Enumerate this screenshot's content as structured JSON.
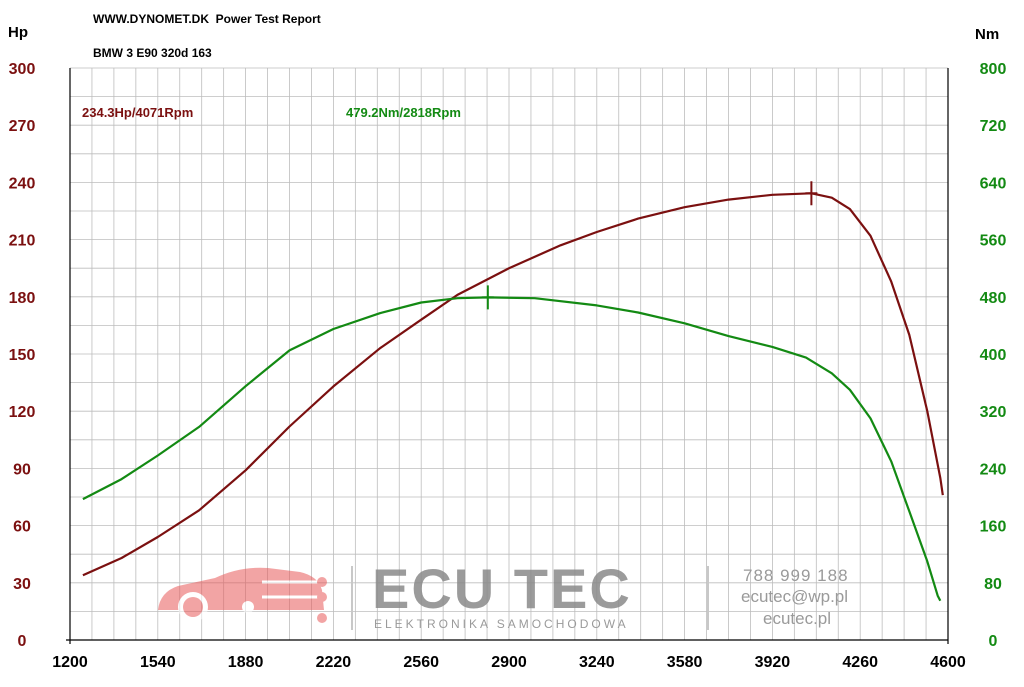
{
  "header": {
    "title": "WWW.DYNOMET.DK  Power Test Report",
    "vehicle": "BMW 3 E90 320d 163"
  },
  "colors": {
    "power": "#7b1010",
    "torque": "#138a13",
    "grid": "#bdbdbd",
    "axis_text": "#000000"
  },
  "chart_data": {
    "type": "line",
    "x_label": "",
    "xlim": [
      1200,
      4600
    ],
    "x_ticks": [
      1200,
      1540,
      1880,
      2220,
      2560,
      2900,
      3240,
      3580,
      3920,
      4260,
      4600
    ],
    "y_left": {
      "unit": "Hp",
      "lim": [
        0,
        300
      ],
      "ticks": [
        0,
        30,
        60,
        90,
        120,
        150,
        180,
        210,
        240,
        270,
        300
      ]
    },
    "y_right": {
      "unit": "Nm",
      "lim": [
        0,
        800
      ],
      "ticks": [
        0,
        80,
        160,
        240,
        320,
        400,
        480,
        560,
        640,
        720,
        800
      ]
    },
    "grid": true,
    "series": [
      {
        "axis": "left",
        "color": "#7b1010",
        "peak_label": "234.3Hp/4071Rpm",
        "peak": {
          "x": 4071,
          "y": 234.3
        },
        "points": [
          [
            1250,
            34
          ],
          [
            1400,
            43
          ],
          [
            1540,
            54
          ],
          [
            1700,
            68
          ],
          [
            1880,
            89
          ],
          [
            2050,
            112
          ],
          [
            2220,
            133
          ],
          [
            2400,
            153
          ],
          [
            2560,
            168
          ],
          [
            2700,
            181
          ],
          [
            2900,
            195
          ],
          [
            3100,
            207
          ],
          [
            3240,
            214
          ],
          [
            3400,
            221
          ],
          [
            3580,
            227
          ],
          [
            3750,
            231
          ],
          [
            3920,
            233.5
          ],
          [
            4071,
            234.3
          ],
          [
            4150,
            232
          ],
          [
            4220,
            226
          ],
          [
            4300,
            212
          ],
          [
            4380,
            188
          ],
          [
            4450,
            160
          ],
          [
            4520,
            120
          ],
          [
            4570,
            85
          ],
          [
            4580,
            76
          ]
        ]
      },
      {
        "axis": "right",
        "color": "#138a13",
        "peak_label": "479.2Nm/2818Rpm",
        "peak": {
          "x": 2818,
          "y": 479.2
        },
        "points": [
          [
            1250,
            197
          ],
          [
            1400,
            225
          ],
          [
            1540,
            258
          ],
          [
            1700,
            298
          ],
          [
            1880,
            355
          ],
          [
            2050,
            405
          ],
          [
            2220,
            435
          ],
          [
            2400,
            457
          ],
          [
            2560,
            472
          ],
          [
            2700,
            478
          ],
          [
            2818,
            479.2
          ],
          [
            3000,
            478
          ],
          [
            3240,
            468
          ],
          [
            3400,
            458
          ],
          [
            3580,
            443
          ],
          [
            3750,
            425
          ],
          [
            3920,
            410
          ],
          [
            4050,
            395
          ],
          [
            4150,
            373
          ],
          [
            4220,
            350
          ],
          [
            4300,
            310
          ],
          [
            4380,
            250
          ],
          [
            4450,
            180
          ],
          [
            4520,
            110
          ],
          [
            4560,
            62
          ],
          [
            4570,
            55
          ]
        ]
      }
    ]
  },
  "watermark": {
    "brand": "ECU TEC",
    "tagline": "ELEKTRONIKA SAMOCHODOWA",
    "phone": "788 999 188",
    "email": "ecutec@wp.pl",
    "website": "ecutec.pl"
  }
}
